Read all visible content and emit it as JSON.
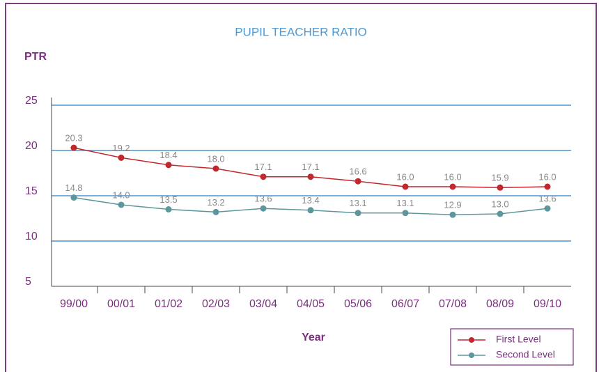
{
  "chart_data": {
    "type": "line",
    "title": "PUPIL TEACHER RATIO",
    "y_label": "PTR",
    "x_label": "Year",
    "categories": [
      "99/00",
      "00/01",
      "01/02",
      "02/03",
      "03/04",
      "04/05",
      "05/06",
      "06/07",
      "07/08",
      "08/09",
      "09/10"
    ],
    "series": [
      {
        "name": "First Level",
        "color": "#c1272d",
        "values": [
          20.3,
          19.2,
          18.4,
          18.0,
          17.1,
          17.1,
          16.6,
          16.0,
          16.0,
          15.9,
          16.0
        ],
        "value_labels": [
          "20.3",
          "19.2",
          "18.4",
          "18.0",
          "17.1",
          "17.1",
          "16.6",
          "16.0",
          "16.0",
          "15.9",
          "16.0"
        ]
      },
      {
        "name": "Second Level",
        "color": "#5e969e",
        "values": [
          14.8,
          14.0,
          13.5,
          13.2,
          13.6,
          13.4,
          13.1,
          13.1,
          12.9,
          13.0,
          13.6
        ],
        "value_labels": [
          "14.8",
          "14.0",
          "13.5",
          "13.2",
          "13.6",
          "13.4",
          "13.1",
          "13.1",
          "12.9",
          "13.0",
          "13.6"
        ]
      }
    ],
    "ylim": [
      5,
      25
    ],
    "yticks": [
      5,
      10,
      15,
      20,
      25
    ],
    "grid": true,
    "legend": "lower right"
  }
}
